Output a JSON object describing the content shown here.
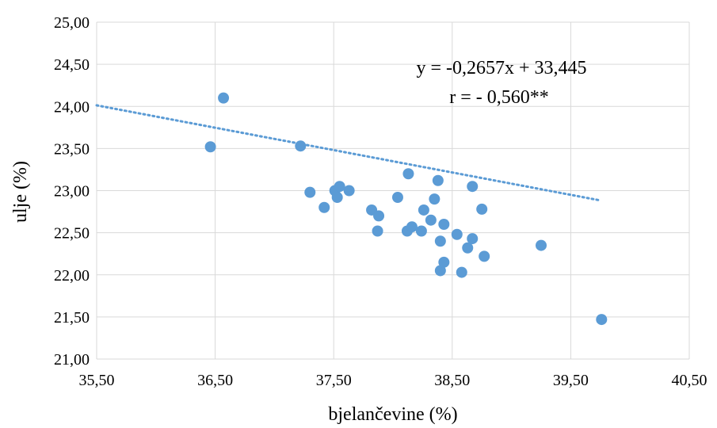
{
  "chart_data": {
    "type": "scatter",
    "xlabel": "bjelančevine (%)",
    "ylabel": "ulje (%)",
    "xlim": [
      35.5,
      40.5
    ],
    "ylim": [
      21.0,
      25.0
    ],
    "x_ticks": [
      35.5,
      36.5,
      37.5,
      38.5,
      39.5,
      40.5
    ],
    "y_ticks": [
      21.0,
      21.5,
      22.0,
      22.5,
      23.0,
      23.5,
      24.0,
      24.5,
      25.0
    ],
    "x_tick_labels": [
      "35,50",
      "36,50",
      "37,50",
      "38,50",
      "39,50",
      "40,50"
    ],
    "y_tick_labels": [
      "21,00",
      "21,50",
      "22,00",
      "22,50",
      "23,00",
      "23,50",
      "24,00",
      "24,50",
      "25,00"
    ],
    "grid": true,
    "marker_color": "#5b9bd5",
    "points": [
      {
        "x": 36.46,
        "y": 23.52
      },
      {
        "x": 36.57,
        "y": 24.1
      },
      {
        "x": 37.22,
        "y": 23.53
      },
      {
        "x": 37.3,
        "y": 22.98
      },
      {
        "x": 37.42,
        "y": 22.8
      },
      {
        "x": 37.51,
        "y": 23.0
      },
      {
        "x": 37.53,
        "y": 22.92
      },
      {
        "x": 37.55,
        "y": 23.05
      },
      {
        "x": 37.63,
        "y": 23.0
      },
      {
        "x": 37.82,
        "y": 22.77
      },
      {
        "x": 37.87,
        "y": 22.52
      },
      {
        "x": 37.88,
        "y": 22.7
      },
      {
        "x": 38.04,
        "y": 22.92
      },
      {
        "x": 38.12,
        "y": 22.52
      },
      {
        "x": 38.13,
        "y": 23.2
      },
      {
        "x": 38.16,
        "y": 22.57
      },
      {
        "x": 38.24,
        "y": 22.52
      },
      {
        "x": 38.26,
        "y": 22.77
      },
      {
        "x": 38.32,
        "y": 22.65
      },
      {
        "x": 38.35,
        "y": 22.9
      },
      {
        "x": 38.38,
        "y": 23.12
      },
      {
        "x": 38.4,
        "y": 22.4
      },
      {
        "x": 38.4,
        "y": 22.05
      },
      {
        "x": 38.43,
        "y": 22.15
      },
      {
        "x": 38.43,
        "y": 22.6
      },
      {
        "x": 38.54,
        "y": 22.48
      },
      {
        "x": 38.58,
        "y": 22.03
      },
      {
        "x": 38.63,
        "y": 22.32
      },
      {
        "x": 38.67,
        "y": 22.43
      },
      {
        "x": 38.67,
        "y": 23.05
      },
      {
        "x": 38.75,
        "y": 22.78
      },
      {
        "x": 38.77,
        "y": 22.22
      },
      {
        "x": 39.25,
        "y": 22.35
      },
      {
        "x": 39.76,
        "y": 21.47
      }
    ],
    "trendline": {
      "type": "linear",
      "slope": -0.2657,
      "intercept": 33.445,
      "x_range": [
        35.5,
        39.75
      ],
      "color": "#5b9bd5",
      "style": "dotted"
    },
    "annotations": [
      "y = -0,2657x + 33,445",
      "r = - 0,560**"
    ]
  }
}
